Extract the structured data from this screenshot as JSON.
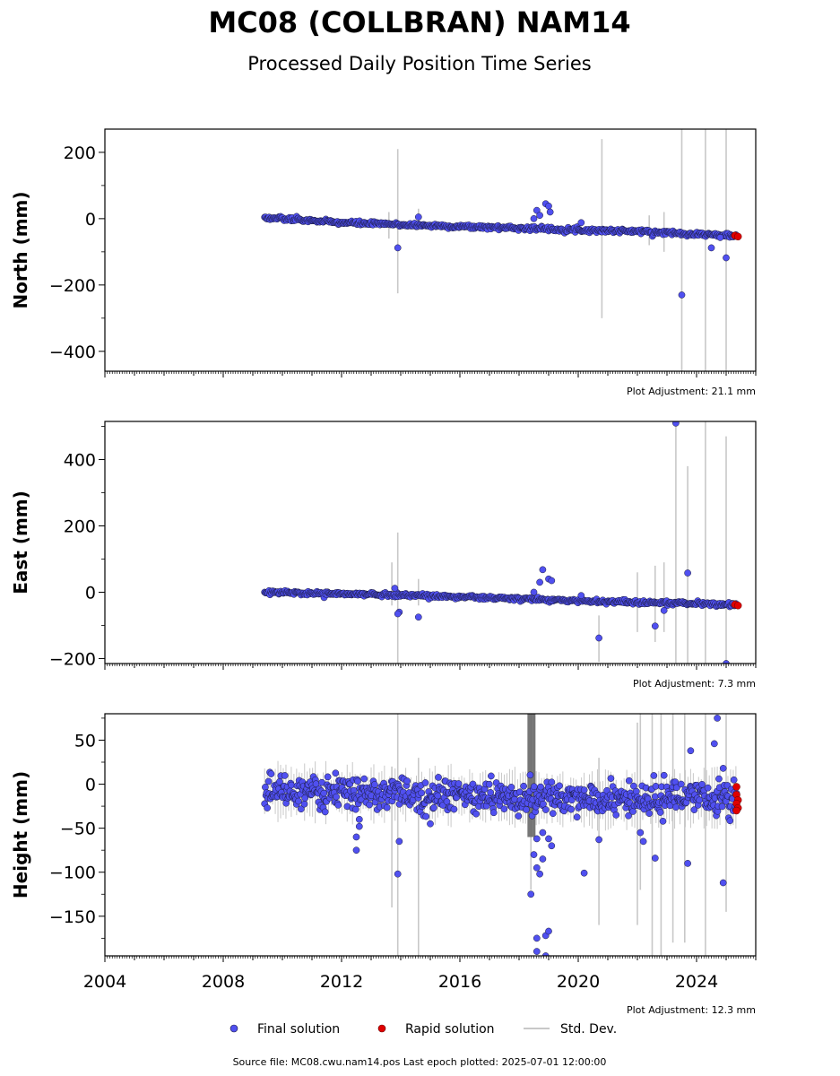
{
  "title": "MC08 (COLLBRAN) NAM14",
  "subtitle": "Processed Daily Position Time Series",
  "footer": "Source file: MC08.cwu.nam14.pos  Last epoch plotted: 2025-07-01 12:00:00",
  "legend": {
    "final": "Final solution",
    "rapid": "Rapid solution",
    "std": "Std. Dev."
  },
  "colors": {
    "final": "#5050f0",
    "final_edge": "#1a1a3a",
    "rapid": "#e00000",
    "std": "#c8c8c8",
    "std_dense": "#6a6a6a"
  },
  "chart_data": [
    {
      "type": "scatter",
      "ylabel": "North (mm)",
      "adjustment": "Plot Adjustment: 21.1 mm",
      "xlim": [
        2004,
        2026
      ],
      "ylim": [
        -460,
        270
      ],
      "yticks": [
        200,
        0,
        -200,
        -400
      ],
      "yticklabels": [
        "200",
        "0",
        "−200",
        "−400"
      ],
      "trend": {
        "x": [
          2009.4,
          2012,
          2014,
          2016,
          2018,
          2020,
          2022,
          2024,
          2025.35
        ],
        "y": [
          3,
          -12,
          -18,
          -24,
          -28,
          -34,
          -38,
          -46,
          -52
        ]
      },
      "scatter_sd": 3,
      "outliers": [
        {
          "x": 2013.9,
          "y": -88
        },
        {
          "x": 2014.6,
          "y": 5
        },
        {
          "x": 2018.6,
          "y": 25
        },
        {
          "x": 2018.7,
          "y": 10
        },
        {
          "x": 2018.9,
          "y": 45
        },
        {
          "x": 2019.0,
          "y": 38
        },
        {
          "x": 2018.5,
          "y": 0
        },
        {
          "x": 2019.05,
          "y": 20
        },
        {
          "x": 2020.1,
          "y": -12
        },
        {
          "x": 2023.5,
          "y": -230
        },
        {
          "x": 2024.5,
          "y": -88
        },
        {
          "x": 2025.0,
          "y": -118
        },
        {
          "x": 2024.8,
          "y": -57
        }
      ],
      "stddev": [
        {
          "x": 2013.9,
          "lo": -225,
          "hi": 210
        },
        {
          "x": 2014.6,
          "lo": -20,
          "hi": 30
        },
        {
          "x": 2020.8,
          "lo": -300,
          "hi": 240
        },
        {
          "x": 2023.5,
          "lo": -460,
          "hi": 270
        },
        {
          "x": 2024.3,
          "lo": -460,
          "hi": 270
        },
        {
          "x": 2025.0,
          "lo": -460,
          "hi": 270
        },
        {
          "x": 2013.6,
          "lo": -60,
          "hi": 20
        },
        {
          "x": 2022.4,
          "lo": -80,
          "hi": 10
        },
        {
          "x": 2022.9,
          "lo": -100,
          "hi": 20
        }
      ],
      "rapid": [
        {
          "x": 2025.3,
          "y": -51
        },
        {
          "x": 2025.4,
          "y": -54
        }
      ]
    },
    {
      "type": "scatter",
      "ylabel": "East (mm)",
      "adjustment": "Plot Adjustment: 7.3 mm",
      "xlim": [
        2004,
        2026
      ],
      "ylim": [
        -215,
        515
      ],
      "yticks": [
        400,
        200,
        0,
        -200
      ],
      "yticklabels": [
        "400",
        "200",
        "0",
        "−200"
      ],
      "trend": {
        "x": [
          2009.4,
          2012,
          2014,
          2016,
          2018,
          2020,
          2022,
          2024,
          2025.35
        ],
        "y": [
          0,
          -5,
          -8,
          -14,
          -20,
          -26,
          -30,
          -34,
          -38
        ]
      },
      "scatter_sd": 3,
      "outliers": [
        {
          "x": 2013.8,
          "y": 12
        },
        {
          "x": 2013.95,
          "y": -60
        },
        {
          "x": 2013.9,
          "y": -65
        },
        {
          "x": 2014.6,
          "y": -75
        },
        {
          "x": 2018.8,
          "y": 68
        },
        {
          "x": 2019.0,
          "y": 40
        },
        {
          "x": 2018.7,
          "y": 30
        },
        {
          "x": 2019.1,
          "y": 35
        },
        {
          "x": 2018.5,
          "y": 0
        },
        {
          "x": 2020.7,
          "y": -138
        },
        {
          "x": 2020.1,
          "y": -10
        },
        {
          "x": 2022.6,
          "y": -102
        },
        {
          "x": 2023.3,
          "y": 510
        },
        {
          "x": 2023.7,
          "y": 58
        },
        {
          "x": 2025.0,
          "y": -215
        },
        {
          "x": 2022.9,
          "y": -55
        }
      ],
      "stddev": [
        {
          "x": 2013.9,
          "lo": -215,
          "hi": 180
        },
        {
          "x": 2013.7,
          "lo": -40,
          "hi": 90
        },
        {
          "x": 2014.6,
          "lo": -40,
          "hi": 40
        },
        {
          "x": 2020.7,
          "lo": -210,
          "hi": -70
        },
        {
          "x": 2022.0,
          "lo": -120,
          "hi": 60
        },
        {
          "x": 2022.6,
          "lo": -150,
          "hi": 80
        },
        {
          "x": 2022.9,
          "lo": -120,
          "hi": 90
        },
        {
          "x": 2023.3,
          "lo": -215,
          "hi": 515
        },
        {
          "x": 2023.7,
          "lo": -215,
          "hi": 380
        },
        {
          "x": 2024.3,
          "lo": -215,
          "hi": 515
        },
        {
          "x": 2025.0,
          "lo": -215,
          "hi": 470
        }
      ],
      "rapid": [
        {
          "x": 2025.3,
          "y": -37
        },
        {
          "x": 2025.4,
          "y": -40
        }
      ]
    },
    {
      "type": "scatter",
      "ylabel": "Height (mm)",
      "adjustment": "Plot Adjustment: 12.3 mm",
      "xlim": [
        2004,
        2026
      ],
      "ylim": [
        -195,
        80
      ],
      "yticks": [
        50,
        0,
        -50,
        -100,
        -150
      ],
      "yticklabels": [
        "50",
        "0",
        "−50",
        "−100",
        "−150"
      ],
      "xticks": [
        2004,
        2008,
        2012,
        2016,
        2020,
        2024
      ],
      "xticklabels": [
        "2004",
        "2008",
        "2012",
        "2016",
        "2020",
        "2024"
      ],
      "trend": {
        "x": [
          2009.4,
          2012,
          2014,
          2016,
          2018,
          2020,
          2022,
          2024,
          2025.35
        ],
        "y": [
          -8,
          -10,
          -12,
          -13,
          -15,
          -18,
          -18,
          -16,
          -15
        ]
      },
      "scatter_sd": 9,
      "outliers": [
        {
          "x": 2012.5,
          "y": -75
        },
        {
          "x": 2012.5,
          "y": -60
        },
        {
          "x": 2012.6,
          "y": -48
        },
        {
          "x": 2012.6,
          "y": -40
        },
        {
          "x": 2013.9,
          "y": -102
        },
        {
          "x": 2013.95,
          "y": -65
        },
        {
          "x": 2015.0,
          "y": -45
        },
        {
          "x": 2018.4,
          "y": -125
        },
        {
          "x": 2018.6,
          "y": -175
        },
        {
          "x": 2018.6,
          "y": -190
        },
        {
          "x": 2018.9,
          "y": -172
        },
        {
          "x": 2019.0,
          "y": -167
        },
        {
          "x": 2018.9,
          "y": -195
        },
        {
          "x": 2018.6,
          "y": -95
        },
        {
          "x": 2018.7,
          "y": -102
        },
        {
          "x": 2018.5,
          "y": -80
        },
        {
          "x": 2018.8,
          "y": -85
        },
        {
          "x": 2019.1,
          "y": -70
        },
        {
          "x": 2019.0,
          "y": -62
        },
        {
          "x": 2018.6,
          "y": -62
        },
        {
          "x": 2018.8,
          "y": -55
        },
        {
          "x": 2020.2,
          "y": -101
        },
        {
          "x": 2020.7,
          "y": -63
        },
        {
          "x": 2022.1,
          "y": -55
        },
        {
          "x": 2022.2,
          "y": -65
        },
        {
          "x": 2022.6,
          "y": -84
        },
        {
          "x": 2023.7,
          "y": -90
        },
        {
          "x": 2023.8,
          "y": 38
        },
        {
          "x": 2024.6,
          "y": 46
        },
        {
          "x": 2024.7,
          "y": 75
        },
        {
          "x": 2024.9,
          "y": -112
        },
        {
          "x": 2024.9,
          "y": 18
        },
        {
          "x": 2022.9,
          "y": 10
        }
      ],
      "stddev": [
        {
          "x": 2013.9,
          "lo": -195,
          "hi": 80
        },
        {
          "x": 2013.7,
          "lo": -140,
          "hi": 20
        },
        {
          "x": 2014.6,
          "lo": -195,
          "hi": 30
        },
        {
          "x": 2018.4,
          "lo": -120,
          "hi": 80
        },
        {
          "x": 2018.5,
          "lo": -60,
          "hi": 80
        },
        {
          "x": 2020.7,
          "lo": -160,
          "hi": 30
        },
        {
          "x": 2022.0,
          "lo": -160,
          "hi": 70
        },
        {
          "x": 2022.1,
          "lo": -120,
          "hi": 80
        },
        {
          "x": 2022.5,
          "lo": -195,
          "hi": 80
        },
        {
          "x": 2022.8,
          "lo": -195,
          "hi": 80
        },
        {
          "x": 2023.2,
          "lo": -180,
          "hi": 80
        },
        {
          "x": 2023.6,
          "lo": -180,
          "hi": 80
        },
        {
          "x": 2024.3,
          "lo": -195,
          "hi": 80
        },
        {
          "x": 2025.0,
          "lo": -145,
          "hi": 80
        }
      ],
      "rapid": [
        {
          "x": 2025.35,
          "y": -3
        },
        {
          "x": 2025.35,
          "y": -12
        },
        {
          "x": 2025.4,
          "y": -18
        },
        {
          "x": 2025.35,
          "y": -22
        },
        {
          "x": 2025.4,
          "y": -27
        },
        {
          "x": 2025.35,
          "y": -30
        }
      ]
    }
  ]
}
